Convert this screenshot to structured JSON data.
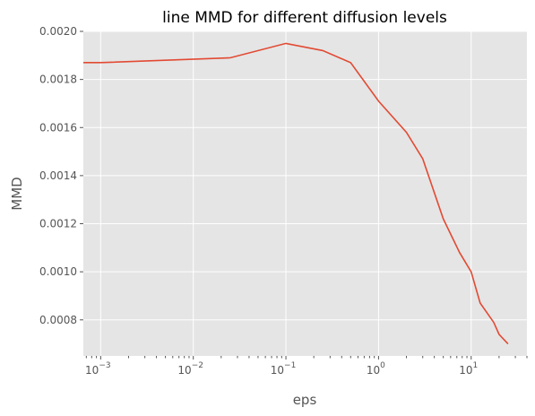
{
  "chart_data": {
    "type": "line",
    "title": "line MMD for different diffusion levels",
    "xlabel": "eps",
    "ylabel": "MMD",
    "xscale": "log",
    "xlim": [
      0.00065,
      40
    ],
    "ylim": [
      0.00065,
      0.002
    ],
    "grid": true,
    "background": "#e5e5e5",
    "line_color": "#e24a33",
    "x_ticks": [
      {
        "value": 0.001,
        "base": "10",
        "exp": "−3"
      },
      {
        "value": 0.01,
        "base": "10",
        "exp": "−2"
      },
      {
        "value": 0.1,
        "base": "10",
        "exp": "−1"
      },
      {
        "value": 1,
        "base": "10",
        "exp": "0"
      },
      {
        "value": 10,
        "base": "10",
        "exp": "1"
      }
    ],
    "y_ticks": [
      {
        "value": 0.0008,
        "label": "0.0008"
      },
      {
        "value": 0.001,
        "label": "0.0010"
      },
      {
        "value": 0.0012,
        "label": "0.0012"
      },
      {
        "value": 0.0014,
        "label": "0.0014"
      },
      {
        "value": 0.0016,
        "label": "0.0016"
      },
      {
        "value": 0.0018,
        "label": "0.0018"
      },
      {
        "value": 0.002,
        "label": "0.0020"
      }
    ],
    "series": [
      {
        "x": [
          0.00065,
          0.001,
          0.025,
          0.1,
          0.25,
          0.5,
          1,
          2,
          3,
          5,
          7.5,
          10,
          12.5,
          17.5,
          20,
          25
        ],
        "y": [
          0.00187,
          0.00187,
          0.00189,
          0.00195,
          0.00192,
          0.00187,
          0.00171,
          0.00158,
          0.00147,
          0.00122,
          0.00108,
          0.001,
          0.00087,
          0.00079,
          0.00074,
          0.0007
        ]
      }
    ]
  }
}
